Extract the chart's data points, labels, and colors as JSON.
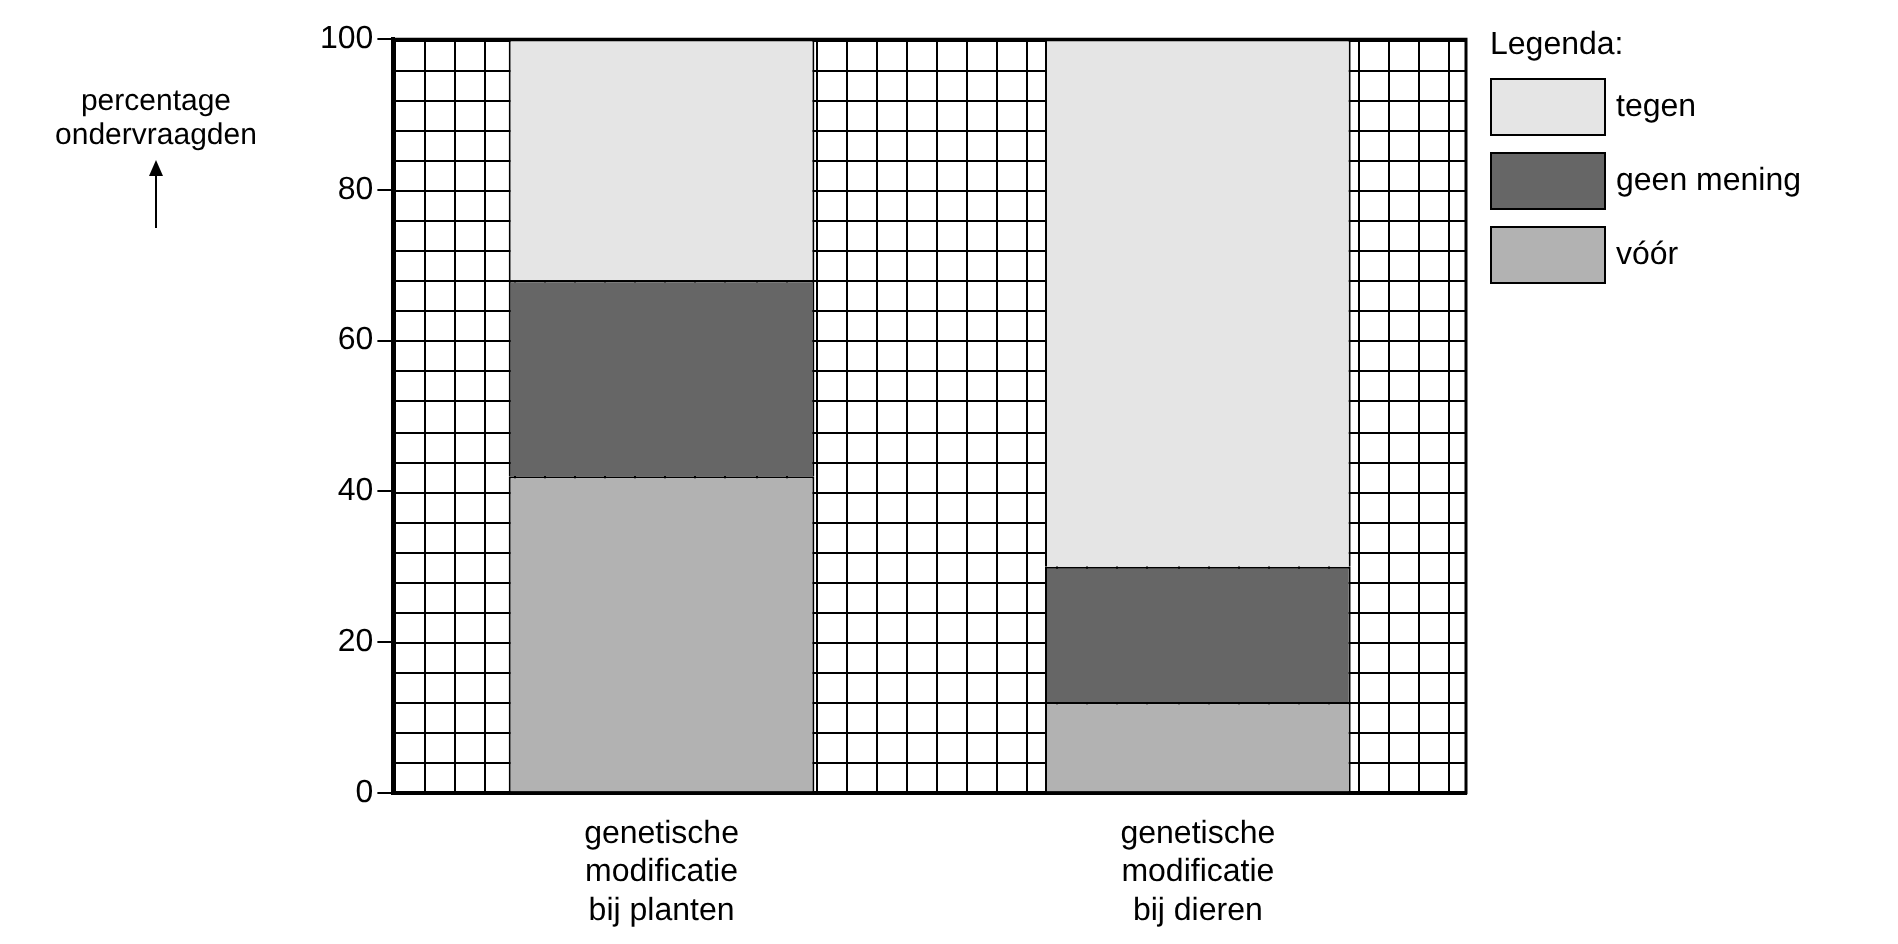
{
  "chart_data": {
    "type": "bar",
    "ylabel": "percentage ondervraagden",
    "legend_title": "Legenda:",
    "categories": [
      "genetische modificatie bij planten",
      "genetische modificatie bij dieren"
    ],
    "series": [
      {
        "name": "vóór",
        "color": "#b2b2b2",
        "values": [
          42,
          12
        ]
      },
      {
        "name": "geen mening",
        "color": "#666666",
        "values": [
          26,
          18
        ]
      },
      {
        "name": "tegen",
        "color": "#e5e5e5",
        "values": [
          32,
          70
        ]
      }
    ],
    "stacked": true,
    "ylim": [
      0,
      100
    ],
    "yticks": [
      0,
      20,
      40,
      60,
      80,
      100
    ],
    "grid": true,
    "legend": "top right"
  }
}
